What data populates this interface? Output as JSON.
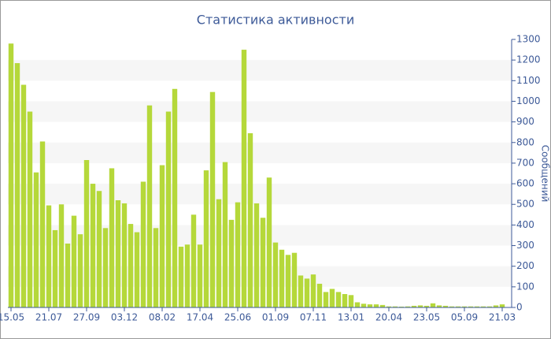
{
  "chart_data": {
    "type": "bar",
    "title": "Статистика активности",
    "y_label": "Сообщений",
    "categories": [
      "15.05",
      null,
      null,
      null,
      null,
      null,
      "21.07",
      null,
      null,
      null,
      null,
      null,
      "27.09",
      null,
      null,
      null,
      null,
      null,
      "03.12",
      null,
      null,
      null,
      null,
      null,
      "08.02",
      null,
      null,
      null,
      null,
      null,
      "17.04",
      null,
      null,
      null,
      null,
      null,
      "25.06",
      null,
      null,
      null,
      null,
      null,
      "01.09",
      null,
      null,
      null,
      null,
      null,
      "07.11",
      null,
      null,
      null,
      null,
      null,
      "13.01",
      null,
      null,
      null,
      null,
      null,
      "20.04",
      null,
      null,
      null,
      null,
      null,
      "23.05",
      null,
      null,
      null,
      null,
      null,
      "05.09",
      null,
      null,
      null,
      null,
      null,
      "21.03"
    ],
    "values": [
      1280,
      1185,
      1080,
      950,
      655,
      805,
      495,
      375,
      500,
      310,
      445,
      355,
      715,
      600,
      565,
      385,
      675,
      520,
      505,
      405,
      365,
      610,
      980,
      385,
      690,
      950,
      1060,
      295,
      305,
      450,
      305,
      665,
      1045,
      525,
      705,
      425,
      510,
      1250,
      845,
      505,
      435,
      630,
      315,
      280,
      255,
      265,
      155,
      140,
      160,
      115,
      75,
      90,
      75,
      65,
      60,
      25,
      18,
      15,
      15,
      12,
      5,
      5,
      4,
      5,
      8,
      10,
      8,
      20,
      10,
      8,
      5,
      5,
      5,
      5,
      5,
      5,
      5,
      10,
      15
    ],
    "color": "#b5d83a",
    "ylim": [
      0,
      1300
    ],
    "yticks": [
      0,
      100,
      200,
      300,
      400,
      500,
      600,
      700,
      800,
      900,
      1000,
      1100,
      1200,
      1300
    ]
  }
}
